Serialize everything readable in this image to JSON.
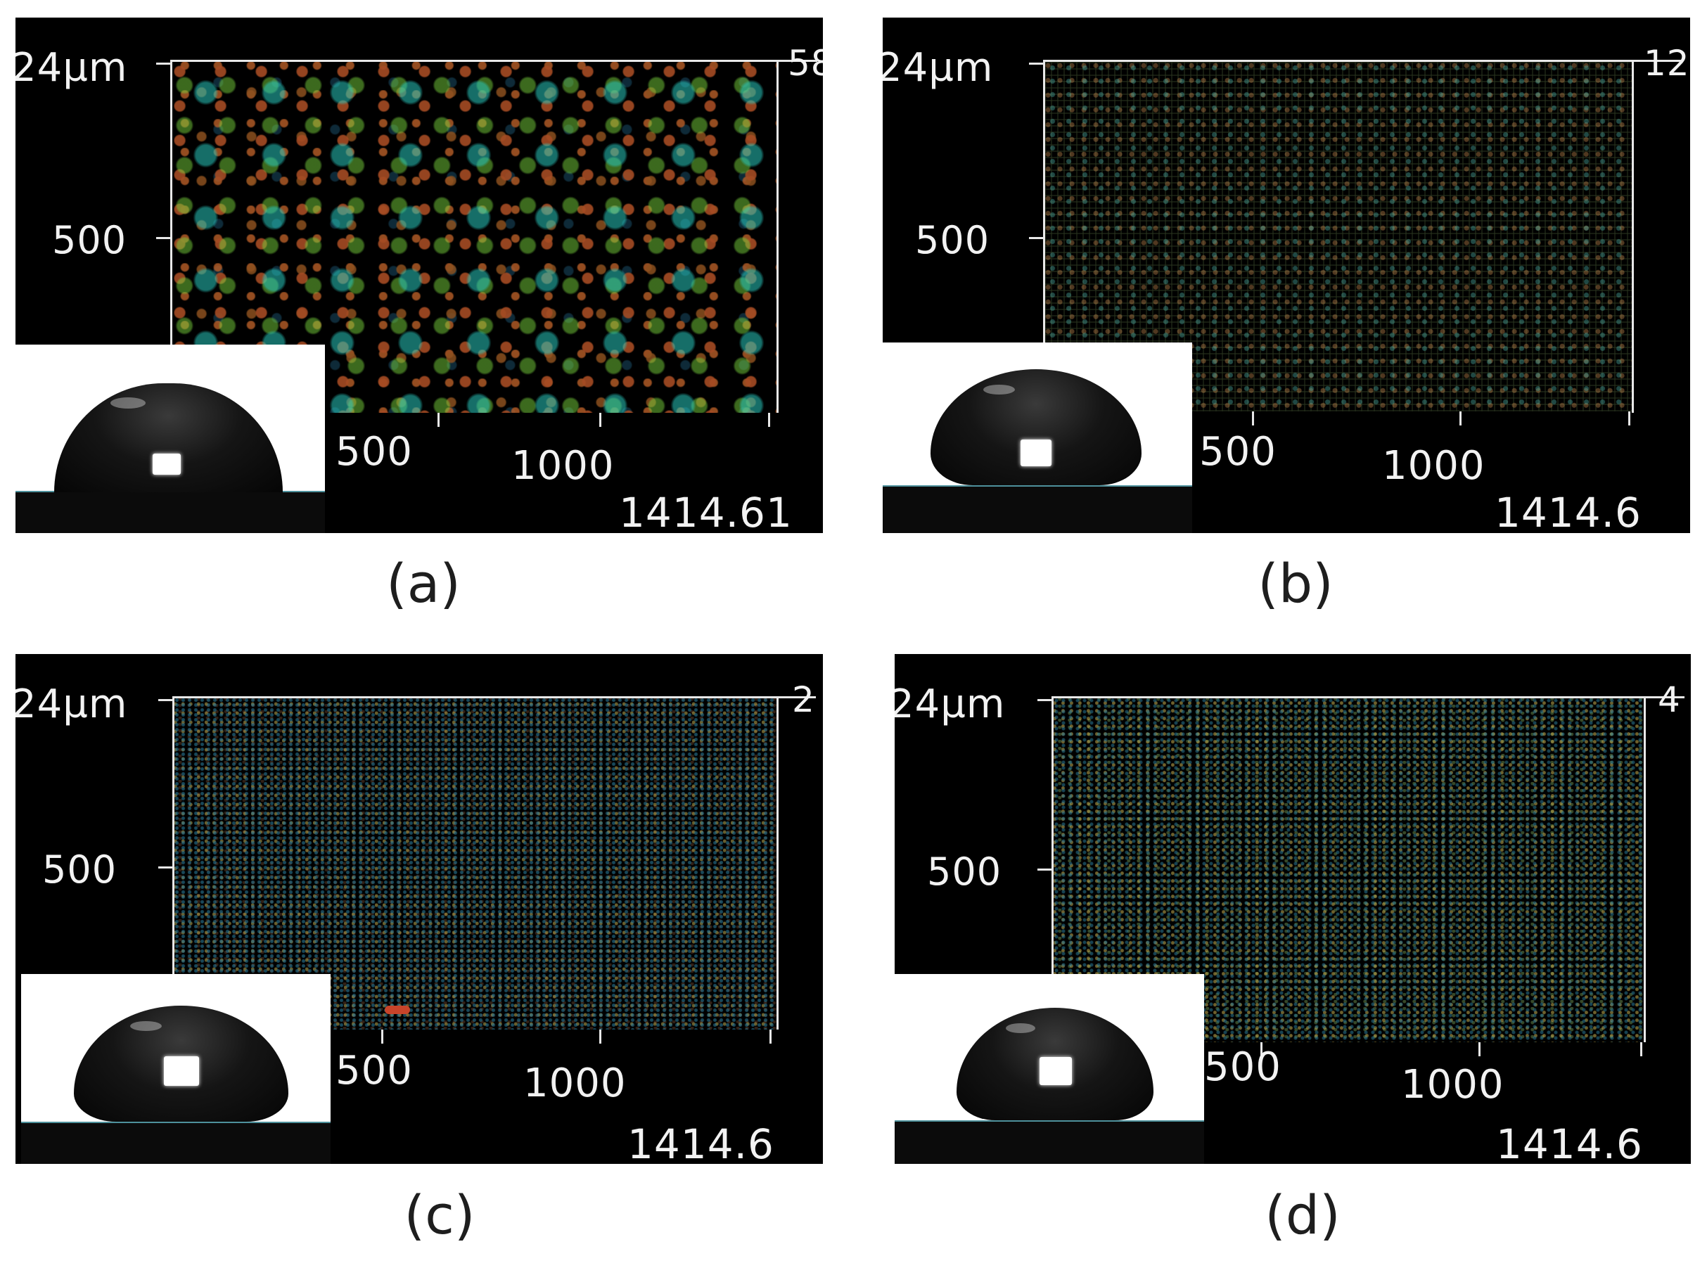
{
  "panels": {
    "a": {
      "caption": "(a)",
      "y_top_label": "24µm",
      "y_mid_label": "500",
      "x_labels": [
        "500",
        "1000"
      ],
      "x_end_label": "1414.61",
      "z_corner_label": "58",
      "surface": "coarse rough texture, green-cyan with brown-red asperities"
    },
    "b": {
      "caption": "(b)",
      "y_top_label": "24µm",
      "y_mid_label": "500",
      "x_labels": [
        "500",
        "1000"
      ],
      "x_end_label": "1414.6",
      "z_corner_label": "12",
      "surface": "fine grid texture, yellow-olive"
    },
    "c": {
      "caption": "(c)",
      "y_top_label": "24µm",
      "y_mid_label": "500",
      "x_labels": [
        "500",
        "1000"
      ],
      "x_end_label": "1414.6",
      "z_corner_label": "2",
      "surface": "fine speckled texture, cyan-green"
    },
    "d": {
      "caption": "(d)",
      "y_top_label": "24µm",
      "y_mid_label": "500",
      "x_labels": [
        "500",
        "1000"
      ],
      "x_end_label": "1414.6",
      "z_corner_label": "4",
      "surface": "fine speckled texture, green-teal"
    }
  },
  "colors": {
    "background": "#ffffff",
    "panel": "#000000",
    "axis": "#e8e8e8",
    "caption": "#1e1e1e"
  }
}
